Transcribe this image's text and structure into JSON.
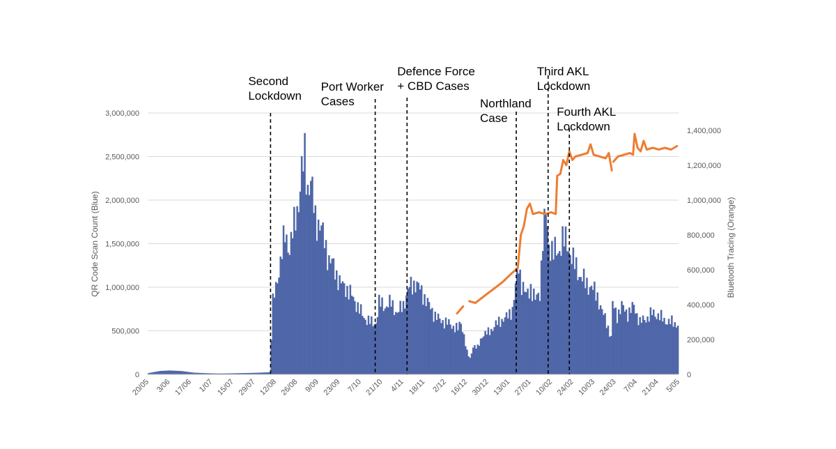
{
  "chart_data": {
    "type": "bar",
    "title": "",
    "ylabel": "QR Code Scan Count (Blue)",
    "y2label": "Bluetooth Tracing (Orange)",
    "ylim": [
      0,
      3000000
    ],
    "y2lim": [
      0,
      1500000
    ],
    "yticks": [
      "0",
      "500,000",
      "1,000,000",
      "1,500,000",
      "2,000,000",
      "2,500,000",
      "3,000,000"
    ],
    "y2ticks": [
      "0",
      "200,000",
      "400,000",
      "600,000",
      "800,000",
      "1,000,000",
      "1,200,000",
      "1,400,000"
    ],
    "x_tick_labels": [
      "20/05",
      "3/06",
      "17/06",
      "1/07",
      "15/07",
      "29/07",
      "12/08",
      "26/08",
      "9/09",
      "23/09",
      "7/10",
      "21/10",
      "4/11",
      "18/11",
      "2/12",
      "16/12",
      "30/12",
      "13/01",
      "27/01",
      "10/02",
      "24/02",
      "10/03",
      "24/03",
      "7/04",
      "21/04",
      "5/05"
    ],
    "grid": true,
    "colors": {
      "qr": "#4f67a8",
      "bluetooth": "#ed7d31"
    },
    "series": [
      {
        "name": "QR Code Scan Count (Blue)",
        "axis": "left",
        "kind": "bar",
        "keyframes": [
          [
            0,
            15000
          ],
          [
            3,
            25000
          ],
          [
            8,
            40000
          ],
          [
            14,
            45000
          ],
          [
            22,
            38000
          ],
          [
            30,
            20000
          ],
          [
            38,
            14000
          ],
          [
            46,
            10000
          ],
          [
            54,
            12000
          ],
          [
            62,
            15000
          ],
          [
            70,
            18000
          ],
          [
            76,
            22000
          ],
          [
            80,
            25000
          ],
          [
            81,
            430000
          ],
          [
            82,
            820000
          ],
          [
            84,
            1000000
          ],
          [
            87,
            1300000
          ],
          [
            90,
            1600000
          ],
          [
            93,
            1450000
          ],
          [
            96,
            1700000
          ],
          [
            99,
            2000000
          ],
          [
            101,
            2300000
          ],
          [
            103,
            2500000
          ],
          [
            105,
            2150000
          ],
          [
            107,
            2200000
          ],
          [
            110,
            1800000
          ],
          [
            113,
            1700000
          ],
          [
            116,
            1550000
          ],
          [
            119,
            1300000
          ],
          [
            122,
            1250000
          ],
          [
            126,
            1050000
          ],
          [
            130,
            1000000
          ],
          [
            134,
            900000
          ],
          [
            138,
            780000
          ],
          [
            142,
            650000
          ],
          [
            145,
            620000
          ],
          [
            148,
            580000
          ],
          [
            150,
            600000
          ],
          [
            152,
            820000
          ],
          [
            156,
            780000
          ],
          [
            160,
            820000
          ],
          [
            164,
            700000
          ],
          [
            168,
            800000
          ],
          [
            172,
            1000000
          ],
          [
            176,
            1050000
          ],
          [
            180,
            950000
          ],
          [
            184,
            820000
          ],
          [
            188,
            700000
          ],
          [
            192,
            620000
          ],
          [
            196,
            600000
          ],
          [
            200,
            560000
          ],
          [
            204,
            520000
          ],
          [
            206,
            600000
          ],
          [
            208,
            450000
          ],
          [
            210,
            250000
          ],
          [
            212,
            180000
          ],
          [
            214,
            330000
          ],
          [
            217,
            300000
          ],
          [
            220,
            450000
          ],
          [
            224,
            480000
          ],
          [
            228,
            550000
          ],
          [
            232,
            620000
          ],
          [
            236,
            650000
          ],
          [
            240,
            750000
          ],
          [
            242,
            1000000
          ],
          [
            244,
            1250000
          ],
          [
            246,
            1050000
          ],
          [
            249,
            900000
          ],
          [
            252,
            1000000
          ],
          [
            255,
            850000
          ],
          [
            258,
            950000
          ],
          [
            260,
            1550000
          ],
          [
            262,
            1850000
          ],
          [
            264,
            1500000
          ],
          [
            267,
            1400000
          ],
          [
            270,
            1400000
          ],
          [
            273,
            1550000
          ],
          [
            276,
            1500000
          ],
          [
            280,
            1300000
          ],
          [
            284,
            1150000
          ],
          [
            288,
            1050000
          ],
          [
            292,
            1000000
          ],
          [
            296,
            900000
          ],
          [
            299,
            720000
          ],
          [
            302,
            600000
          ],
          [
            305,
            420000
          ],
          [
            306,
            800000
          ],
          [
            309,
            680000
          ],
          [
            312,
            780000
          ],
          [
            316,
            700000
          ],
          [
            320,
            780000
          ],
          [
            324,
            600000
          ],
          [
            328,
            640000
          ],
          [
            332,
            700000
          ],
          [
            336,
            680000
          ],
          [
            340,
            620000
          ],
          [
            344,
            600000
          ],
          [
            348,
            580000
          ]
        ]
      },
      {
        "name": "Bluetooth Tracing (Orange)",
        "axis": "right",
        "kind": "line",
        "segments": [
          [
            [
              204,
              350000
            ],
            [
              208,
              390000
            ]
          ],
          [
            [
              212,
              420000
            ],
            [
              216,
              410000
            ],
            [
              222,
              450000
            ],
            [
              228,
              490000
            ],
            [
              234,
              530000
            ],
            [
              240,
              580000
            ],
            [
              244,
              610000
            ],
            [
              246,
              800000
            ],
            [
              248,
              850000
            ],
            [
              250,
              950000
            ],
            [
              252,
              980000
            ],
            [
              254,
              920000
            ],
            [
              258,
              930000
            ],
            [
              262,
              920000
            ],
            [
              266,
              930000
            ],
            [
              269,
              920000
            ],
            [
              270,
              1140000
            ],
            [
              272,
              1150000
            ],
            [
              274,
              1230000
            ],
            [
              276,
              1200000
            ],
            [
              278,
              1280000
            ],
            [
              280,
              1230000
            ],
            [
              282,
              1250000
            ],
            [
              286,
              1260000
            ],
            [
              290,
              1270000
            ],
            [
              292,
              1320000
            ],
            [
              294,
              1260000
            ],
            [
              298,
              1250000
            ],
            [
              302,
              1240000
            ],
            [
              304,
              1270000
            ],
            [
              306,
              1170000
            ]
          ],
          [
            [
              307,
              1220000
            ],
            [
              310,
              1250000
            ],
            [
              314,
              1260000
            ],
            [
              318,
              1270000
            ],
            [
              320,
              1260000
            ],
            [
              321,
              1380000
            ],
            [
              323,
              1300000
            ],
            [
              325,
              1280000
            ],
            [
              327,
              1340000
            ],
            [
              329,
              1290000
            ],
            [
              333,
              1300000
            ],
            [
              337,
              1290000
            ],
            [
              341,
              1300000
            ],
            [
              345,
              1290000
            ],
            [
              349,
              1310000
            ]
          ]
        ]
      }
    ],
    "annotations": [
      {
        "day": 81,
        "lines": [
          "Second",
          "Lockdown"
        ]
      },
      {
        "day": 150,
        "lines": [
          "Port Worker",
          "Cases"
        ]
      },
      {
        "day": 171,
        "lines": [
          "Defence Force",
          "+ CBD Cases"
        ]
      },
      {
        "day": 243,
        "lines": [
          "Northland",
          "Case"
        ]
      },
      {
        "day": 264,
        "lines": [
          "Third AKL",
          "Lockdown"
        ]
      },
      {
        "day": 278,
        "lines": [
          "Fourth AKL",
          "Lockdown"
        ]
      }
    ]
  }
}
